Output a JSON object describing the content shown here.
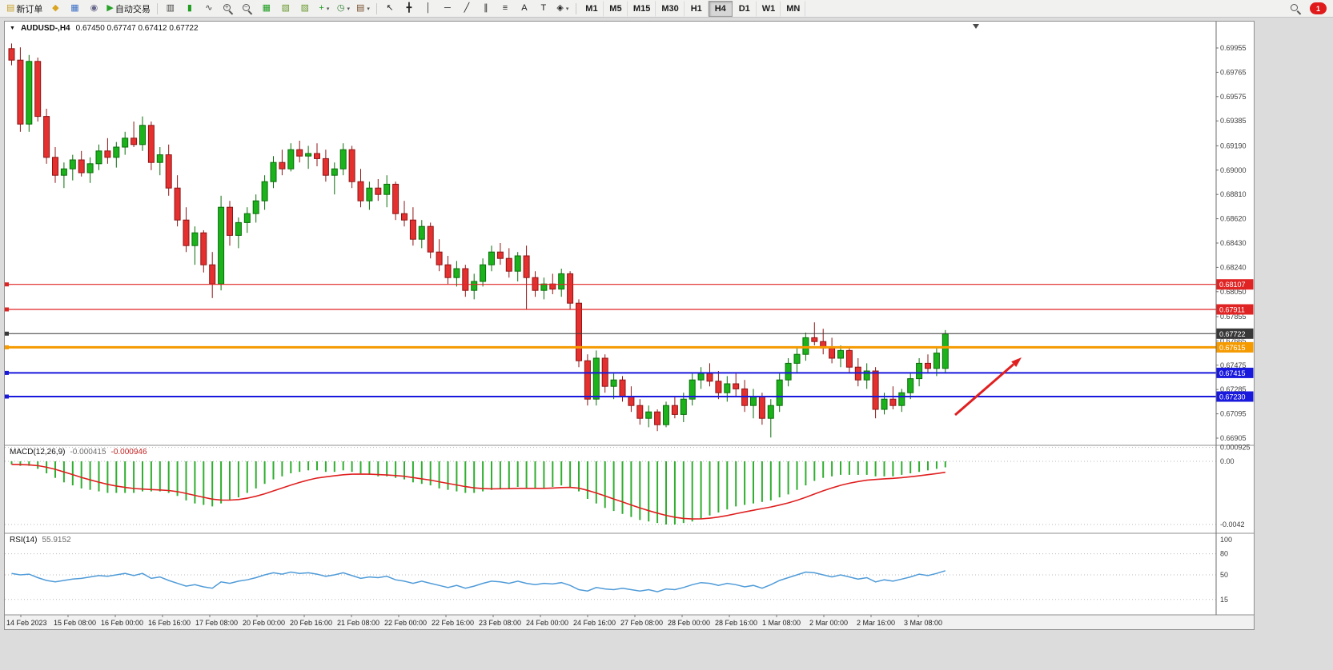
{
  "toolbar": {
    "groups": [
      {
        "name": "trade-tools",
        "items": [
          {
            "name": "new-order-button",
            "glyph": "▤",
            "glyph_color": "#c9a227",
            "label": "新订单"
          },
          {
            "name": "profiles-button",
            "glyph": "◆",
            "glyph_color": "#d9a520"
          },
          {
            "name": "charts-button",
            "glyph": "▦",
            "glyph_color": "#3b6fc4"
          },
          {
            "name": "alerts-button",
            "glyph": "◉",
            "glyph_color": "#666688"
          },
          {
            "name": "auto-trading-button",
            "glyph": "▶",
            "glyph_color": "#27a227",
            "label": "自动交易"
          }
        ]
      },
      {
        "name": "chart-tools",
        "items": [
          {
            "name": "bar-chart-button",
            "glyph": "▥",
            "glyph_color": "#444444"
          },
          {
            "name": "candlestick-button",
            "glyph": "▮",
            "glyph_color": "#1f9d1f"
          },
          {
            "name": "line-chart-button",
            "glyph": "∿",
            "glyph_color": "#444444"
          },
          {
            "name": "zoom-in-button",
            "mag": "+"
          },
          {
            "name": "zoom-out-button",
            "mag": "−"
          },
          {
            "name": "tile-windows-button",
            "glyph": "▦",
            "glyph_color": "#1f9d1f"
          },
          {
            "name": "cascade-windows-button",
            "glyph": "▧",
            "glyph_color": "#6a9a2f"
          },
          {
            "name": "arrange-windows-button",
            "glyph": "▨",
            "glyph_color": "#6a9a2f"
          },
          {
            "name": "indicators-button",
            "glyph": "+",
            "glyph_color": "#1f9d1f",
            "caret": true
          },
          {
            "name": "periods-button",
            "glyph": "◷",
            "glyph_color": "#2a7d2a",
            "caret": true
          },
          {
            "name": "templates-button",
            "glyph": "▤",
            "glyph_color": "#7a5230",
            "caret": true
          }
        ]
      },
      {
        "name": "drawing-tools",
        "items": [
          {
            "name": "cursor-button",
            "glyph": "↖",
            "glyph_color": "#222222"
          },
          {
            "name": "crosshair-button",
            "glyph": "╋",
            "glyph_color": "#222222"
          },
          {
            "name": "vertical-line-button",
            "glyph": "│",
            "glyph_color": "#222222"
          },
          {
            "name": "horizontal-line-button",
            "glyph": "─",
            "glyph_color": "#222222"
          },
          {
            "name": "trendline-button",
            "glyph": "╱",
            "glyph_color": "#222222"
          },
          {
            "name": "channel-button",
            "glyph": "∥",
            "glyph_color": "#222222"
          },
          {
            "name": "fibonacci-button",
            "glyph": "≡",
            "glyph_color": "#222222"
          },
          {
            "name": "text-button",
            "glyph": "A",
            "glyph_color": "#222222"
          },
          {
            "name": "text-label-button",
            "glyph": "T",
            "glyph_color": "#222222"
          },
          {
            "name": "shapes-button",
            "glyph": "◈",
            "glyph_color": "#222222",
            "caret": true
          }
        ]
      },
      {
        "name": "timeframes",
        "items": [
          {
            "name": "timeframe-m1",
            "label": "M1"
          },
          {
            "name": "timeframe-m5",
            "label": "M5"
          },
          {
            "name": "timeframe-m15",
            "label": "M15"
          },
          {
            "name": "timeframe-m30",
            "label": "M30"
          },
          {
            "name": "timeframe-h1",
            "label": "H1"
          },
          {
            "name": "timeframe-h4",
            "label": "H4",
            "active": true
          },
          {
            "name": "timeframe-d1",
            "label": "D1"
          },
          {
            "name": "timeframe-w1",
            "label": "W1"
          },
          {
            "name": "timeframe-mn",
            "label": "MN"
          }
        ]
      }
    ],
    "right": {
      "notification_count": "1"
    }
  },
  "chart": {
    "symbol_label": "AUDUSD-,H4",
    "ohlc": "0.67450 0.67747 0.67412 0.67722",
    "colors": {
      "up": "#1cb21c",
      "up_stroke": "#0a6e0a",
      "down": "#e53030",
      "down_stroke": "#8f1414",
      "macd_hist": "#2fae2f",
      "macd_signal": "#e02020",
      "rsi_line": "#4f9bd8",
      "arrow": "#e02020"
    },
    "price_axis": [
      "0.69955",
      "0.69765",
      "0.69575",
      "0.69385",
      "0.69190",
      "0.69000",
      "0.68810",
      "0.68620",
      "0.68430",
      "0.68240",
      "0.68050",
      "0.67855",
      "0.67665",
      "0.67475",
      "0.67285",
      "0.67095",
      "0.66905"
    ],
    "hlines": [
      {
        "name": "resistance-line-1",
        "price": 0.68107,
        "label": "0.68107",
        "color": "#e02424",
        "width": 1.2
      },
      {
        "name": "resistance-line-2",
        "price": 0.67911,
        "label": "0.67911",
        "color": "#e02424",
        "width": 1.2
      },
      {
        "name": "current-price-line",
        "price": 0.67722,
        "label": "0.67722",
        "color": "#383838",
        "width": 1
      },
      {
        "name": "pivot-line",
        "price": 0.67615,
        "label": "0.67615",
        "color": "#f59a00",
        "width": 3
      },
      {
        "name": "support-line-1",
        "price": 0.67415,
        "label": "0.67415",
        "color": "#1919dd",
        "width": 2
      },
      {
        "name": "support-line-2",
        "price": 0.6723,
        "label": "0.67230",
        "color": "#1919dd",
        "width": 2
      }
    ],
    "date_axis": [
      "14 Feb 2023",
      "15 Feb 08:00",
      "16 Feb 00:00",
      "16 Feb 16:00",
      "17 Feb 08:00",
      "20 Feb 00:00",
      "20 Feb 16:00",
      "21 Feb 08:00",
      "22 Feb 00:00",
      "22 Feb 16:00",
      "23 Feb 08:00",
      "24 Feb 00:00",
      "24 Feb 16:00",
      "27 Feb 08:00",
      "28 Feb 00:00",
      "28 Feb 16:00",
      "1 Mar 08:00",
      "2 Mar 00:00",
      "2 Mar 16:00",
      "3 Mar 08:00"
    ]
  },
  "macd": {
    "label": "MACD(12,26,9)",
    "value_main": "-0.000415",
    "value_signal": "-0.000946",
    "axis_labels": [
      {
        "text": "0.000925",
        "value": 0.000925
      },
      {
        "text": "0.00",
        "value": 0
      },
      {
        "text": "-0.0042",
        "value": -0.0042
      }
    ]
  },
  "rsi": {
    "label": "RSI(14)",
    "value": "55.9152",
    "axis_labels": [
      {
        "text": "100",
        "value": 100
      },
      {
        "text": "80",
        "value": 80
      },
      {
        "text": "50",
        "value": 50
      },
      {
        "text": "15",
        "value": 15
      }
    ]
  },
  "chart_data": [
    {
      "type": "candlestick",
      "title": "AUDUSD H4",
      "price_scale": 0.0001,
      "y_range": [
        0.66905,
        0.69955
      ],
      "ohlc": [
        [
          6995,
          6999,
          6982,
          6986
        ],
        [
          6986,
          6996,
          6930,
          6936
        ],
        [
          6936,
          6990,
          6930,
          6985
        ],
        [
          6985,
          6988,
          6938,
          6942
        ],
        [
          6942,
          6948,
          6905,
          6910
        ],
        [
          6910,
          6918,
          6890,
          6896
        ],
        [
          6896,
          6906,
          6886,
          6901
        ],
        [
          6901,
          6912,
          6892,
          6908
        ],
        [
          6908,
          6915,
          6895,
          6898
        ],
        [
          6898,
          6910,
          6890,
          6905
        ],
        [
          6905,
          6920,
          6900,
          6915
        ],
        [
          6915,
          6925,
          6905,
          6910
        ],
        [
          6910,
          6922,
          6902,
          6918
        ],
        [
          6918,
          6930,
          6912,
          6925
        ],
        [
          6925,
          6938,
          6918,
          6920
        ],
        [
          6920,
          6942,
          6915,
          6935
        ],
        [
          6935,
          6938,
          6900,
          6906
        ],
        [
          6906,
          6918,
          6896,
          6912
        ],
        [
          6912,
          6920,
          6880,
          6886
        ],
        [
          6886,
          6896,
          6856,
          6861
        ],
        [
          6861,
          6871,
          6836,
          6841
        ],
        [
          6841,
          6856,
          6826,
          6851
        ],
        [
          6851,
          6853,
          6820,
          6826
        ],
        [
          6826,
          6836,
          6800,
          6811
        ],
        [
          6811,
          6880,
          6806,
          6871
        ],
        [
          6871,
          6876,
          6841,
          6849
        ],
        [
          6849,
          6863,
          6839,
          6859
        ],
        [
          6859,
          6871,
          6851,
          6866
        ],
        [
          6866,
          6881,
          6859,
          6876
        ],
        [
          6876,
          6896,
          6869,
          6891
        ],
        [
          6891,
          6911,
          6886,
          6906
        ],
        [
          6906,
          6916,
          6896,
          6901
        ],
        [
          6901,
          6921,
          6899,
          6916
        ],
        [
          6916,
          6923,
          6906,
          6911
        ],
        [
          6911,
          6919,
          6901,
          6913
        ],
        [
          6913,
          6921,
          6903,
          6909
        ],
        [
          6909,
          6916,
          6891,
          6896
        ],
        [
          6896,
          6906,
          6881,
          6901
        ],
        [
          6901,
          6921,
          6896,
          6916
        ],
        [
          6916,
          6919,
          6886,
          6891
        ],
        [
          6891,
          6901,
          6871,
          6876
        ],
        [
          6876,
          6891,
          6869,
          6886
        ],
        [
          6886,
          6893,
          6876,
          6881
        ],
        [
          6881,
          6896,
          6871,
          6889
        ],
        [
          6889,
          6891,
          6861,
          6866
        ],
        [
          6866,
          6876,
          6856,
          6861
        ],
        [
          6861,
          6871,
          6841,
          6846
        ],
        [
          6846,
          6861,
          6839,
          6856
        ],
        [
          6856,
          6859,
          6831,
          6836
        ],
        [
          6836,
          6846,
          6821,
          6826
        ],
        [
          6826,
          6833,
          6811,
          6816
        ],
        [
          6816,
          6829,
          6809,
          6823
        ],
        [
          6823,
          6826,
          6801,
          6806
        ],
        [
          6806,
          6819,
          6799,
          6813
        ],
        [
          6813,
          6831,
          6809,
          6826
        ],
        [
          6826,
          6841,
          6821,
          6836
        ],
        [
          6836,
          6843,
          6826,
          6831
        ],
        [
          6831,
          6839,
          6816,
          6821
        ],
        [
          6821,
          6836,
          6813,
          6833
        ],
        [
          6833,
          6841,
          6791,
          6816
        ],
        [
          6816,
          6821,
          6801,
          6806
        ],
        [
          6806,
          6816,
          6799,
          6811
        ],
        [
          6811,
          6819,
          6803,
          6807
        ],
        [
          6807,
          6823,
          6801,
          6819
        ],
        [
          6819,
          6821,
          6791,
          6796
        ],
        [
          6796,
          6799,
          6746,
          6751
        ],
        [
          6751,
          6756,
          6716,
          6721
        ],
        [
          6721,
          6759,
          6716,
          6753
        ],
        [
          6753,
          6756,
          6726,
          6731
        ],
        [
          6731,
          6741,
          6721,
          6736
        ],
        [
          6736,
          6739,
          6719,
          6723
        ],
        [
          6723,
          6731,
          6711,
          6716
        ],
        [
          6716,
          6721,
          6701,
          6706
        ],
        [
          6706,
          6716,
          6699,
          6711
        ],
        [
          6711,
          6713,
          6696,
          6701
        ],
        [
          6701,
          6719,
          6699,
          6716
        ],
        [
          6716,
          6723,
          6706,
          6709
        ],
        [
          6709,
          6726,
          6703,
          6721
        ],
        [
          6721,
          6741,
          6716,
          6736
        ],
        [
          6736,
          6746,
          6729,
          6741
        ],
        [
          6741,
          6749,
          6731,
          6735
        ],
        [
          6735,
          6743,
          6721,
          6726
        ],
        [
          6726,
          6739,
          6719,
          6733
        ],
        [
          6733,
          6741,
          6723,
          6729
        ],
        [
          6729,
          6736,
          6711,
          6716
        ],
        [
          6716,
          6729,
          6706,
          6723
        ],
        [
          6723,
          6726,
          6701,
          6706
        ],
        [
          6706,
          6721,
          6691,
          6716
        ],
        [
          6716,
          6741,
          6711,
          6736
        ],
        [
          6736,
          6753,
          6731,
          6749
        ],
        [
          6749,
          6761,
          6741,
          6756
        ],
        [
          6756,
          6773,
          6751,
          6769
        ],
        [
          6769,
          6781,
          6763,
          6766
        ],
        [
          6766,
          6776,
          6756,
          6761
        ],
        [
          6761,
          6769,
          6749,
          6753
        ],
        [
          6753,
          6763,
          6746,
          6759
        ],
        [
          6759,
          6761,
          6741,
          6746
        ],
        [
          6746,
          6753,
          6731,
          6736
        ],
        [
          6736,
          6749,
          6729,
          6743
        ],
        [
          6743,
          6746,
          6706,
          6713
        ],
        [
          6713,
          6726,
          6709,
          6721
        ],
        [
          6721,
          6731,
          6713,
          6716
        ],
        [
          6716,
          6729,
          6711,
          6726
        ],
        [
          6726,
          6741,
          6721,
          6737
        ],
        [
          6737,
          6753,
          6731,
          6749
        ],
        [
          6749,
          6756,
          6741,
          6745
        ],
        [
          6745,
          6761,
          6739,
          6757
        ],
        [
          6745,
          6775,
          6741,
          6772
        ]
      ]
    },
    {
      "type": "bar",
      "name": "MACD histogram",
      "value_scale": 0.0001,
      "y_range": [
        -0.0042,
        0.000925
      ],
      "values": [
        -2,
        -3,
        -3,
        -5,
        -8,
        -11,
        -14,
        -16,
        -18,
        -19,
        -20,
        -21,
        -21,
        -21,
        -21,
        -20,
        -20,
        -20,
        -21,
        -23,
        -26,
        -28,
        -29,
        -30,
        -28,
        -26,
        -24,
        -21,
        -18,
        -15,
        -12,
        -10,
        -8,
        -7,
        -6,
        -6,
        -7,
        -7,
        -6,
        -7,
        -8,
        -9,
        -10,
        -10,
        -11,
        -12,
        -14,
        -15,
        -16,
        -18,
        -19,
        -20,
        -21,
        -21,
        -20,
        -19,
        -18,
        -18,
        -17,
        -18,
        -18,
        -18,
        -17,
        -16,
        -17,
        -20,
        -25,
        -28,
        -31,
        -33,
        -35,
        -37,
        -39,
        -40,
        -41,
        -42,
        -42,
        -41,
        -40,
        -38,
        -36,
        -34,
        -32,
        -30,
        -29,
        -28,
        -27,
        -26,
        -24,
        -22,
        -19,
        -16,
        -13,
        -11,
        -10,
        -9,
        -9,
        -9,
        -9,
        -10,
        -10,
        -10,
        -9,
        -8,
        -7,
        -6,
        -5,
        -4
      ]
    },
    {
      "type": "line",
      "name": "RSI(14)",
      "y_range": [
        0,
        100
      ],
      "levels": [
        80,
        50,
        15
      ],
      "values": [
        52,
        50,
        51,
        46,
        42,
        40,
        42,
        44,
        45,
        47,
        49,
        48,
        50,
        52,
        49,
        52,
        45,
        47,
        42,
        38,
        34,
        36,
        33,
        31,
        40,
        38,
        41,
        43,
        46,
        50,
        53,
        51,
        54,
        52,
        53,
        51,
        48,
        50,
        53,
        49,
        45,
        47,
        46,
        48,
        43,
        41,
        38,
        41,
        38,
        35,
        32,
        35,
        31,
        34,
        38,
        41,
        40,
        38,
        41,
        38,
        36,
        38,
        37,
        39,
        35,
        29,
        27,
        32,
        30,
        29,
        31,
        29,
        27,
        29,
        26,
        30,
        29,
        32,
        36,
        39,
        38,
        35,
        38,
        36,
        33,
        35,
        31,
        36,
        42,
        46,
        50,
        54,
        53,
        50,
        47,
        50,
        47,
        44,
        46,
        40,
        43,
        41,
        44,
        47,
        51,
        49,
        52,
        55.9
      ]
    }
  ]
}
